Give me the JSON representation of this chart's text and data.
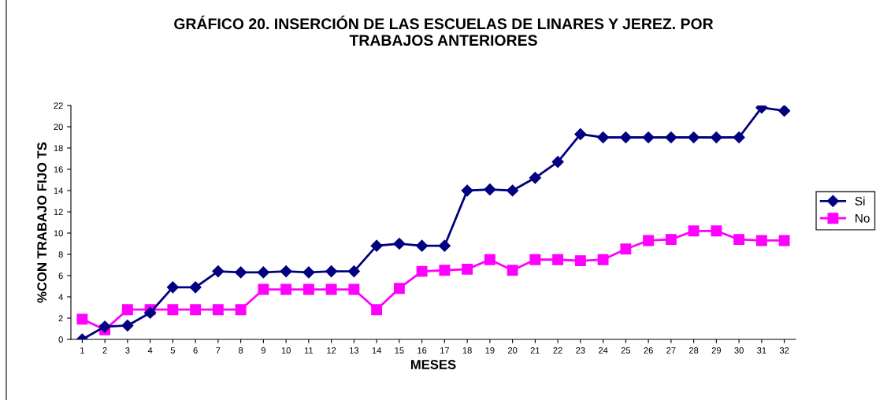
{
  "chart_data": {
    "type": "line",
    "title": "GRÁFICO 20. INSERCIÓN DE LAS ESCUELAS DE LINARES Y JEREZ. POR\nTRABAJOS ANTERIORES",
    "xlabel": "MESES",
    "ylabel": "%CON TRABAJO FIJO TS",
    "categories": [
      "1",
      "2",
      "3",
      "4",
      "5",
      "6",
      "7",
      "8",
      "9",
      "10",
      "11",
      "12",
      "13",
      "14",
      "15",
      "16",
      "17",
      "18",
      "19",
      "20",
      "21",
      "22",
      "23",
      "24",
      "25",
      "26",
      "27",
      "28",
      "29",
      "30",
      "31",
      "32"
    ],
    "series": [
      {
        "name": "Si",
        "color": "#000080",
        "marker": "diamond",
        "values": [
          0,
          1.2,
          1.3,
          2.5,
          4.9,
          4.9,
          6.4,
          6.3,
          6.3,
          6.4,
          6.3,
          6.4,
          6.4,
          8.8,
          9.0,
          8.8,
          8.8,
          14.0,
          14.1,
          14.0,
          15.2,
          16.7,
          19.3,
          19.0,
          19.0,
          19.0,
          19.0,
          19.0,
          19.0,
          19.0,
          21.8,
          21.5
        ]
      },
      {
        "name": "No",
        "color": "#ff00ff",
        "marker": "square",
        "values": [
          1.9,
          0.9,
          2.8,
          2.8,
          2.8,
          2.8,
          2.8,
          2.8,
          4.7,
          4.7,
          4.7,
          4.7,
          4.7,
          2.8,
          4.8,
          6.4,
          6.5,
          6.6,
          7.5,
          6.5,
          7.5,
          7.5,
          7.4,
          7.5,
          8.5,
          9.3,
          9.4,
          10.2,
          10.2,
          9.4,
          9.3,
          9.3
        ]
      }
    ],
    "ylim": [
      0,
      22
    ],
    "yticks": [
      0,
      2,
      4,
      6,
      8,
      10,
      12,
      14,
      16,
      18,
      20,
      22
    ],
    "grid": false,
    "legend": "right",
    "line_style": "solid"
  }
}
